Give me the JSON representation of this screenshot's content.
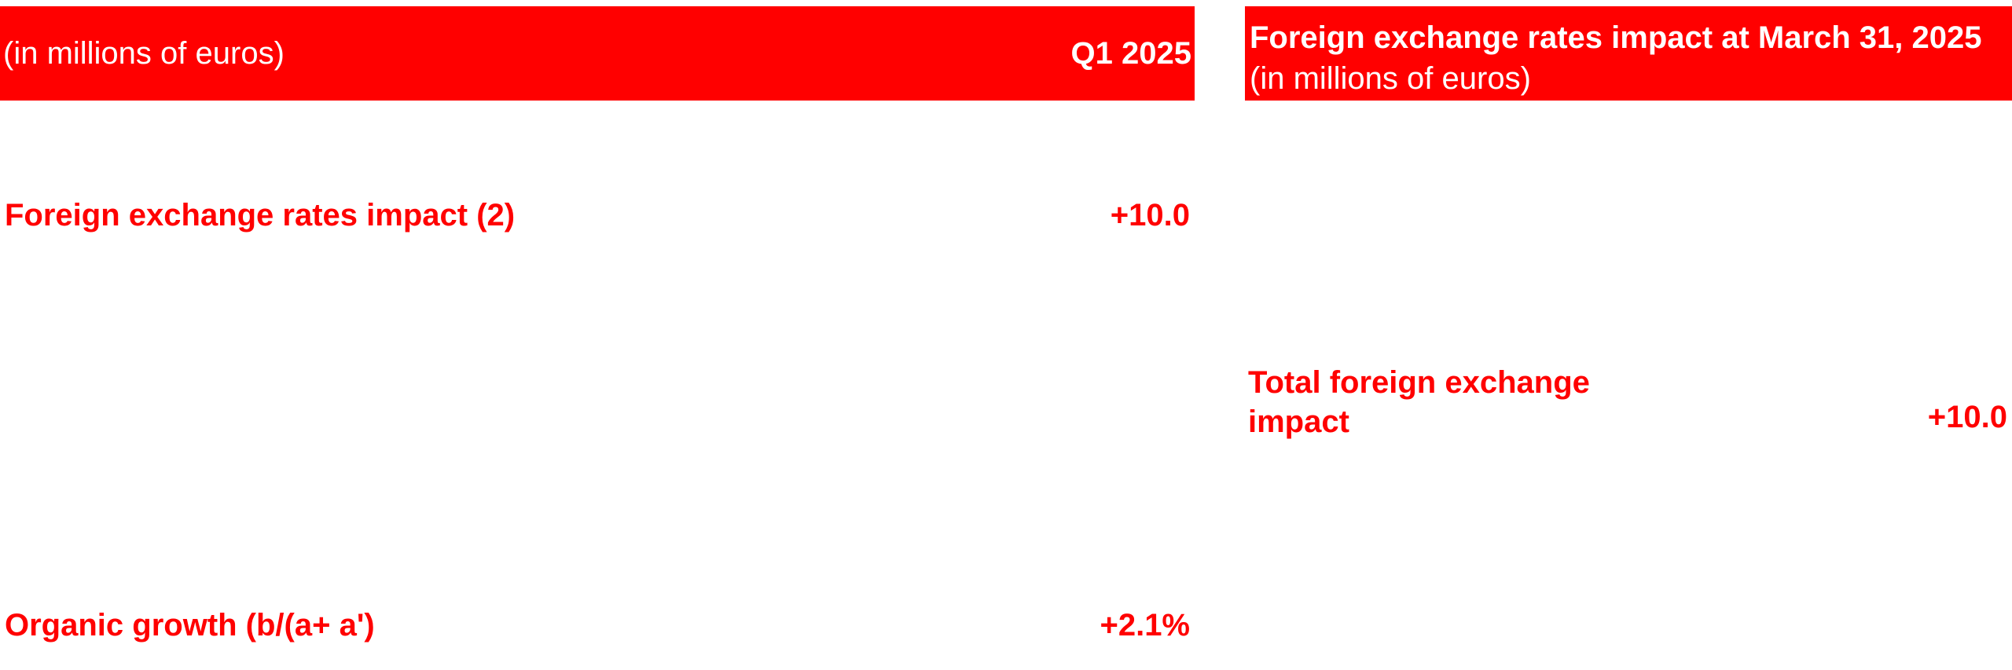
{
  "left_table": {
    "header": {
      "unit_label": "(in millions of euros)",
      "period_label": "Q1 2025"
    },
    "rows": [
      {
        "label": "Foreign exchange rates impact (2)",
        "value": "+10.0"
      },
      {
        "label": "Organic growth (b/(a+ a')",
        "value": "+2.1%"
      }
    ]
  },
  "right_table": {
    "header": {
      "title_bold": "Foreign exchange rates impact at March 31, 2025",
      "title_unit": "(in millions of euros)"
    },
    "total": {
      "label": "Total foreign exchange impact",
      "value": "+10.0"
    }
  },
  "colors": {
    "accent": "#ff0000",
    "header_text": "#ffffff",
    "background": "#ffffff"
  }
}
